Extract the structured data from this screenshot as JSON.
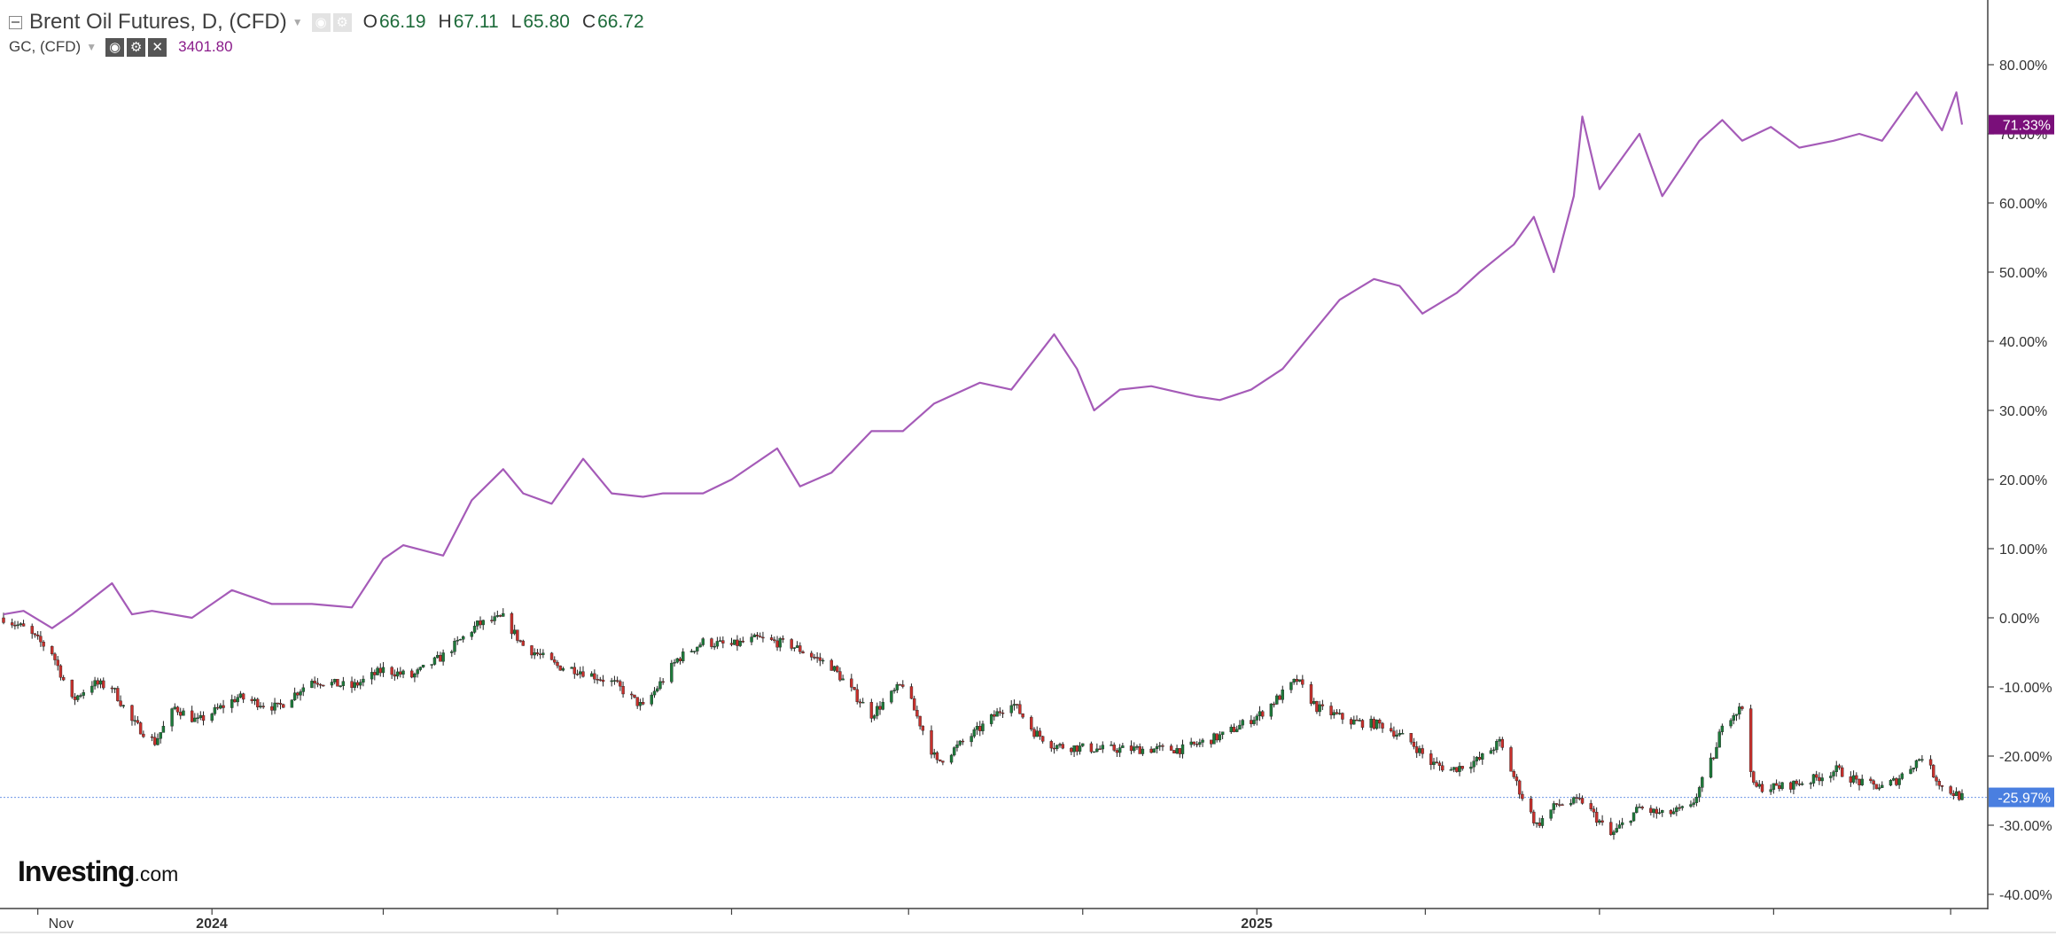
{
  "header": {
    "main_title": "Brent Oil Futures, D, (CFD)",
    "ohlc": [
      {
        "label": "O",
        "value": "66.19"
      },
      {
        "label": "H",
        "value": "67.11"
      },
      {
        "label": "L",
        "value": "65.80"
      },
      {
        "label": "C",
        "value": "66.72"
      }
    ],
    "sub_title": "GC, (CFD)",
    "sub_value": "3401.80"
  },
  "brand": {
    "name": "Investing",
    "suffix": ".com"
  },
  "colors": {
    "gold_line": "#a55bb8",
    "gold_badge": "#7a0f7a",
    "oil_badge": "#4a7fe0",
    "candle_up": "#1d7a3a",
    "candle_down": "#c8302c"
  },
  "chart_data": {
    "type": "line",
    "y_axis_ticks": [
      "80.00%",
      "70.00%",
      "60.00%",
      "50.00%",
      "40.00%",
      "30.00%",
      "20.00%",
      "10.00%",
      "0.00%",
      "-10.00%",
      "-20.00%",
      "-30.00%",
      "-40.00%"
    ],
    "ylim": [
      -40,
      80
    ],
    "x_ticks": [
      {
        "label": "Nov",
        "date": "2023-11-01"
      },
      {
        "label": "2024",
        "date": "2024-01-01"
      },
      {
        "label": "",
        "date": "2024-03-01"
      },
      {
        "label": "",
        "date": "2024-05-01"
      },
      {
        "label": "",
        "date": "2024-07-01"
      },
      {
        "label": "",
        "date": "2024-09-01"
      },
      {
        "label": "",
        "date": "2024-11-01"
      },
      {
        "label": "2025",
        "date": "2025-01-01"
      },
      {
        "label": "",
        "date": "2025-03-01"
      },
      {
        "label": "",
        "date": "2025-05-01"
      },
      {
        "label": "",
        "date": "2025-07-01"
      },
      {
        "label": "",
        "date": "2025-09-01"
      }
    ],
    "last_value_labels": {
      "gold": "71.33%",
      "oil": "-25.97%"
    },
    "series": [
      {
        "render": "line",
        "x": [
          "2023-10-20",
          "2023-10-27",
          "2023-11-06",
          "2023-11-13",
          "2023-11-27",
          "2023-12-04",
          "2023-12-11",
          "2023-12-25",
          "2024-01-08",
          "2024-01-22",
          "2024-02-05",
          "2024-02-19",
          "2024-03-01",
          "2024-03-08",
          "2024-03-22",
          "2024-04-01",
          "2024-04-12",
          "2024-04-19",
          "2024-04-29",
          "2024-05-10",
          "2024-05-20",
          "2024-05-31",
          "2024-06-07",
          "2024-06-21",
          "2024-07-01",
          "2024-07-17",
          "2024-07-25",
          "2024-08-05",
          "2024-08-19",
          "2024-08-30",
          "2024-09-10",
          "2024-09-26",
          "2024-10-07",
          "2024-10-22",
          "2024-10-30",
          "2024-11-05",
          "2024-11-14",
          "2024-11-25",
          "2024-12-11",
          "2024-12-19",
          "2024-12-30",
          "2025-01-10",
          "2025-01-22",
          "2025-01-30",
          "2025-02-11",
          "2025-02-20",
          "2025-02-28",
          "2025-03-12",
          "2025-03-20",
          "2025-04-01",
          "2025-04-08",
          "2025-04-15",
          "2025-04-22",
          "2025-04-25",
          "2025-05-01",
          "2025-05-15",
          "2025-05-23",
          "2025-06-05",
          "2025-06-13",
          "2025-06-20",
          "2025-06-30",
          "2025-07-10",
          "2025-07-22",
          "2025-07-31",
          "2025-08-08",
          "2025-08-20",
          "2025-08-29",
          "2025-09-03",
          "2025-09-05"
        ],
        "values": [
          0.5,
          1.0,
          -1.5,
          0.5,
          5.0,
          0.5,
          1.0,
          0.0,
          4.0,
          2.0,
          2.0,
          1.5,
          8.5,
          10.5,
          9.0,
          17.0,
          21.5,
          18.0,
          16.5,
          23.0,
          18.0,
          17.5,
          18.0,
          18.0,
          20.0,
          24.5,
          19.0,
          21.0,
          27.0,
          27.0,
          31.0,
          34.0,
          33.0,
          41.0,
          36.0,
          30.0,
          33.0,
          33.5,
          32.0,
          31.5,
          33.0,
          36.0,
          42.0,
          46.0,
          49.0,
          48.0,
          44.0,
          47.0,
          50.0,
          54.0,
          58.0,
          50.0,
          61.0,
          72.5,
          62.0,
          70.0,
          61.0,
          69.0,
          72.0,
          69.0,
          71.0,
          68.0,
          69.0,
          70.0,
          69.0,
          76.0,
          70.5,
          76.0,
          71.33
        ]
      },
      {
        "render": "candlestick",
        "x": [
          "2023-10-20",
          "2023-10-27",
          "2023-11-06",
          "2023-11-13",
          "2023-11-20",
          "2023-11-27",
          "2023-12-04",
          "2023-12-12",
          "2023-12-19",
          "2023-12-27",
          "2024-01-10",
          "2024-01-24",
          "2024-02-05",
          "2024-02-19",
          "2024-03-01",
          "2024-03-11",
          "2024-03-22",
          "2024-04-03",
          "2024-04-12",
          "2024-04-19",
          "2024-05-01",
          "2024-05-08",
          "2024-05-21",
          "2024-05-31",
          "2024-06-12",
          "2024-06-21",
          "2024-07-01",
          "2024-07-10",
          "2024-07-22",
          "2024-08-05",
          "2024-08-12",
          "2024-08-19",
          "2024-08-30",
          "2024-09-11",
          "2024-09-17",
          "2024-09-26",
          "2024-10-07",
          "2024-10-15",
          "2024-10-22",
          "2024-11-07",
          "2024-11-20",
          "2024-12-06",
          "2024-12-20",
          "2025-01-02",
          "2025-01-10",
          "2025-01-15",
          "2025-01-22",
          "2025-02-03",
          "2025-02-14",
          "2025-02-24",
          "2025-03-03",
          "2025-03-10",
          "2025-03-20",
          "2025-03-27",
          "2025-04-03",
          "2025-04-09",
          "2025-04-16",
          "2025-04-25",
          "2025-05-05",
          "2025-05-15",
          "2025-05-23",
          "2025-06-02",
          "2025-06-11",
          "2025-06-13",
          "2025-06-20",
          "2025-06-24",
          "2025-07-03",
          "2025-07-14",
          "2025-07-23",
          "2025-08-01",
          "2025-08-08",
          "2025-08-13",
          "2025-08-22",
          "2025-08-29",
          "2025-09-05"
        ],
        "values": [
          0.0,
          -1.5,
          -5.0,
          -12.0,
          -9.5,
          -10.0,
          -15.0,
          -18.0,
          -13.0,
          -15.0,
          -11.5,
          -13.0,
          -9.0,
          -10.0,
          -7.5,
          -8.5,
          -5.5,
          -1.0,
          0.0,
          -4.0,
          -7.0,
          -7.5,
          -9.5,
          -13.0,
          -6.0,
          -3.5,
          -4.0,
          -3.0,
          -4.0,
          -7.0,
          -10.5,
          -14.0,
          -9.5,
          -21.0,
          -19.0,
          -16.0,
          -12.0,
          -16.5,
          -18.5,
          -19.0,
          -19.0,
          -19.0,
          -17.0,
          -14.0,
          -11.0,
          -9.0,
          -13.0,
          -15.0,
          -15.5,
          -18.0,
          -21.0,
          -22.0,
          -20.5,
          -18.0,
          -25.0,
          -30.0,
          -27.0,
          -26.5,
          -31.5,
          -27.5,
          -28.5,
          -27.5,
          -19.0,
          -15.0,
          -13.0,
          -24.5,
          -24.5,
          -23.5,
          -22.0,
          -24.0,
          -24.5,
          -23.5,
          -20.0,
          -24.5,
          -25.97
        ]
      }
    ]
  }
}
